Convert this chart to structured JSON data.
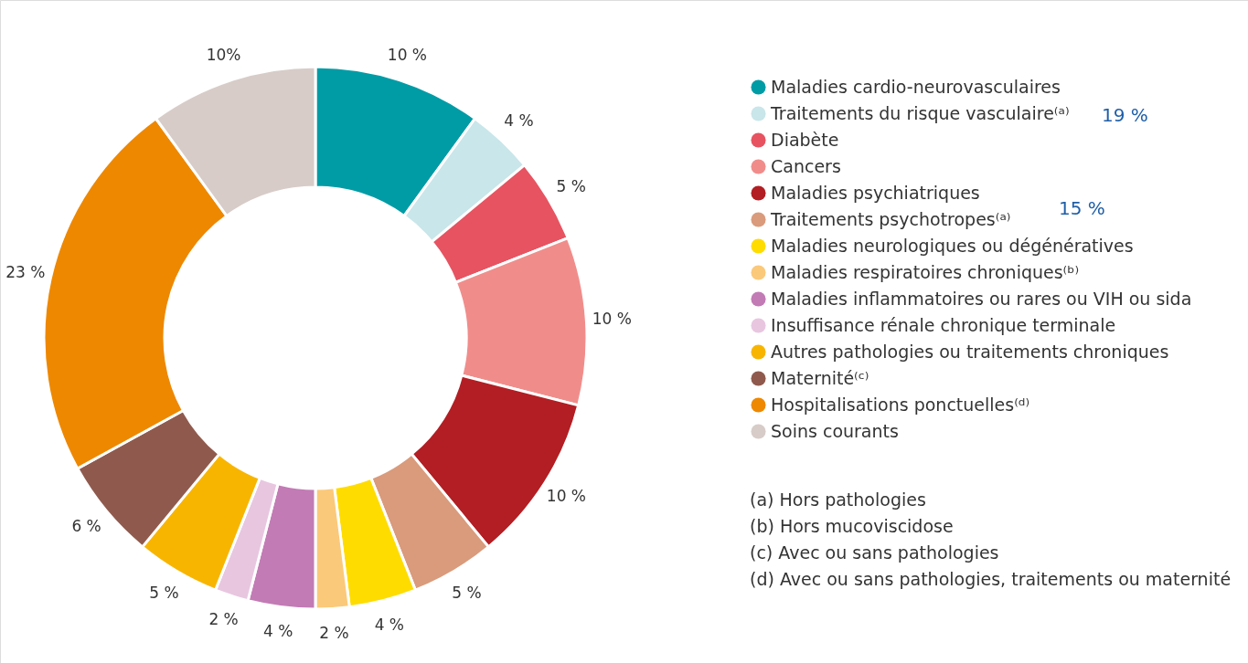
{
  "chart_data": {
    "type": "donut",
    "categories": [
      "Maladies cardio-neurovasculaires",
      "Traitements du risque vasculaire⁽ᵃ⁾",
      "Diabète",
      "Cancers",
      "Maladies psychiatriques",
      "Traitements psychotropes⁽ᵃ⁾",
      "Maladies neurologiques ou dégénératives",
      "Maladies respiratoires chroniques⁽ᵇ⁾",
      "Maladies inflammatoires ou rares ou VIH ou sida",
      "Insuffisance rénale chronique terminale",
      "Autres pathologies ou traitements chroniques",
      "Maternité⁽ᶜ⁾",
      "Hospitalisations ponctuelles⁽ᵈ⁾",
      "Soins courants"
    ],
    "values": [
      10,
      4,
      5,
      10,
      10,
      5,
      4,
      2,
      4,
      2,
      5,
      6,
      23,
      10
    ],
    "value_labels": [
      "10 %",
      "4 %",
      "5 %",
      "10 %",
      "10 %",
      "5 %",
      "4 %",
      "2 %",
      "4 %",
      "2 %",
      "5 %",
      "6 %",
      "23 %",
      "10%"
    ],
    "colors": [
      "#009ca6",
      "#c9e6ea",
      "#e75361",
      "#f08d8b",
      "#b21e23",
      "#d99b7c",
      "#ffdc00",
      "#fbc97a",
      "#c27bb5",
      "#e8c6e0",
      "#f8b500",
      "#8f5a4d",
      "#ee8800",
      "#d7ccc8"
    ],
    "legend": "right",
    "annotations": [
      "19 %",
      "15 %",
      "(a) Hors pathologies",
      "(b) Hors mucoviscidose",
      "(c) Avec ou sans pathologies",
      "(d) Avec ou sans pathologies, traitements ou maternité"
    ]
  }
}
